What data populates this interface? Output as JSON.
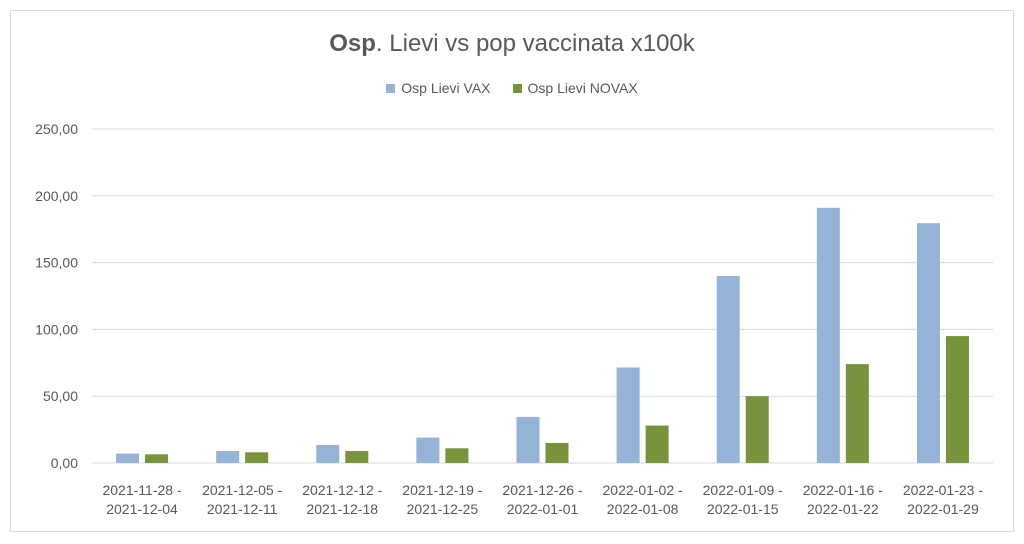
{
  "chart_data": {
    "type": "bar",
    "title_bold": "Osp",
    "title_rest": ". Lievi vs pop vaccinata x100k",
    "categories": [
      [
        "2021-11-28 -",
        "2021-12-04"
      ],
      [
        "2021-12-05 -",
        "2021-12-11"
      ],
      [
        "2021-12-12 -",
        "2021-12-18"
      ],
      [
        "2021-12-19 -",
        "2021-12-25"
      ],
      [
        "2021-12-26 -",
        "2022-01-01"
      ],
      [
        "2022-01-02 -",
        "2022-01-08"
      ],
      [
        "2022-01-09 -",
        "2022-01-15"
      ],
      [
        "2022-01-16 -",
        "2022-01-22"
      ],
      [
        "2022-01-23 -",
        "2022-01-29"
      ]
    ],
    "series": [
      {
        "name": "Osp Lievi VAX",
        "color": "#95b3d7",
        "values": [
          7,
          9,
          13.5,
          19,
          34.5,
          71.5,
          140,
          191,
          179.5
        ]
      },
      {
        "name": "Osp Lievi NOVAX",
        "color": "#77933c",
        "values": [
          6.5,
          8,
          9,
          11,
          15,
          28,
          50,
          74,
          95
        ]
      }
    ],
    "ylim": [
      0,
      250
    ],
    "yticks": [
      "0,00",
      "50,00",
      "100,00",
      "150,00",
      "200,00",
      "250,00"
    ],
    "ytick_values": [
      0,
      50,
      100,
      150,
      200,
      250
    ],
    "grid": true,
    "legend_position": "top-center"
  }
}
